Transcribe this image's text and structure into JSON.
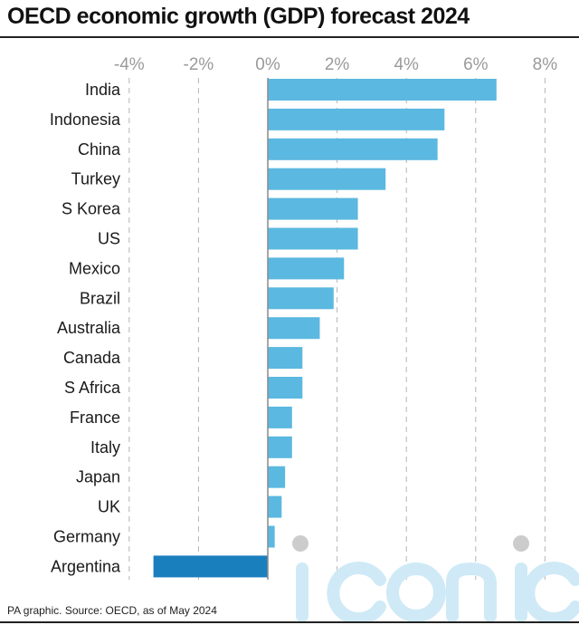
{
  "title": "OECD economic growth (GDP) forecast 2024",
  "source": "PA graphic. Source: OECD, as of May 2024",
  "watermark": "iconic",
  "colors": {
    "bar_positive": "#5bb8e0",
    "bar_negative": "#1a7fbd",
    "grid": "#b5b5b5",
    "axis": "#8a8a8a"
  },
  "chart_data": {
    "type": "bar",
    "orientation": "horizontal",
    "categories": [
      "India",
      "Indonesia",
      "China",
      "Turkey",
      "S Korea",
      "US",
      "Mexico",
      "Brazil",
      "Australia",
      "Canada",
      "S Africa",
      "France",
      "Italy",
      "Japan",
      "UK",
      "Germany",
      "Argentina"
    ],
    "values": [
      6.6,
      5.1,
      4.9,
      3.4,
      2.6,
      2.6,
      2.2,
      1.9,
      1.5,
      1.0,
      1.0,
      0.7,
      0.7,
      0.5,
      0.4,
      0.2,
      -3.3
    ],
    "ticks": [
      -4,
      -2,
      0,
      2,
      4,
      6,
      8
    ],
    "tick_labels": [
      "-4%",
      "-2%",
      "0%",
      "2%",
      "4%",
      "6%",
      "8%"
    ],
    "xlim": [
      -4,
      8
    ],
    "grid": true,
    "title": "OECD economic growth (GDP) forecast 2024",
    "xlabel": "",
    "ylabel": ""
  }
}
